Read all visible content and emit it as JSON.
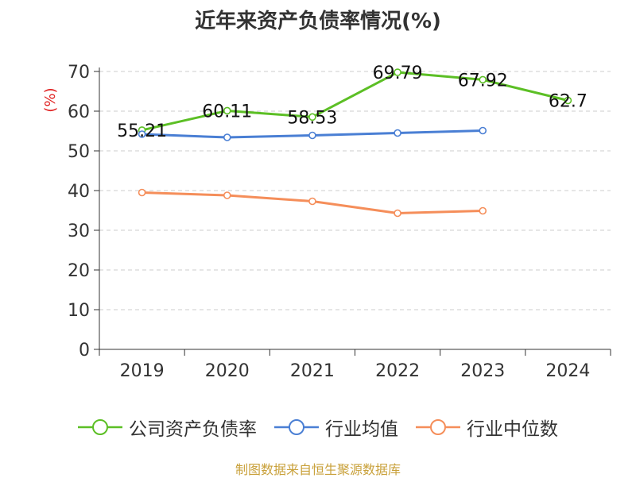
{
  "chart_data": {
    "type": "line",
    "title": "近年来资产负债率情况(%)",
    "ylabel": "(%)",
    "xlabel": "",
    "categories": [
      "2019",
      "2020",
      "2021",
      "2022",
      "2023",
      "2024"
    ],
    "ylim": [
      0,
      70
    ],
    "yticks": [
      0,
      10,
      20,
      30,
      40,
      50,
      60,
      70
    ],
    "grid": true,
    "legend_position": "bottom",
    "series": [
      {
        "name": "公司资产负债率",
        "color": "#5cbf25",
        "values": [
          55.21,
          60.11,
          58.53,
          69.79,
          67.92,
          62.7
        ],
        "labels": [
          "55.21",
          "60.11",
          "58.53",
          "69.79",
          "67.92",
          "62.7"
        ]
      },
      {
        "name": "行业均值",
        "color": "#4a7fd4",
        "values": [
          54.2,
          53.4,
          53.9,
          54.5,
          55.1,
          null
        ]
      },
      {
        "name": "行业中位数",
        "color": "#f58e5a",
        "values": [
          39.5,
          38.8,
          37.3,
          34.3,
          34.9,
          null
        ]
      }
    ]
  },
  "source": {
    "text": "制图数据来自恒生聚源数据库",
    "color": "#c9a13b"
  },
  "colors": {
    "axis": "#333333",
    "grid": "#cccccc",
    "ylabel": "#e02020"
  }
}
